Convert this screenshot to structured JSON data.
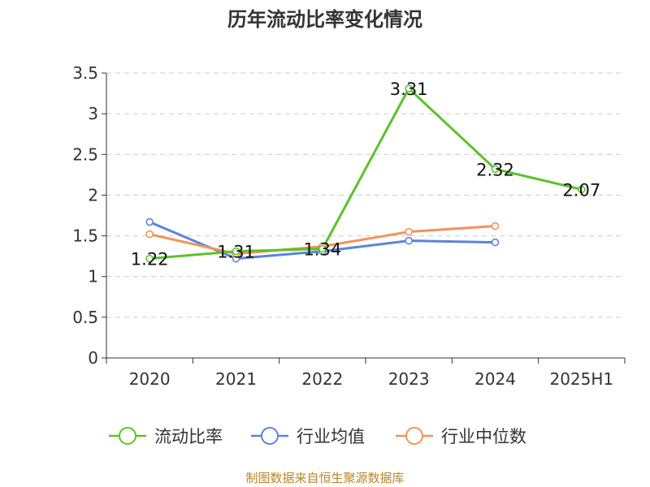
{
  "source_note": "制图数据来自恒生聚源数据库",
  "chart_data": {
    "type": "line",
    "title": "历年流动比率变化情况",
    "categories": [
      "2020",
      "2021",
      "2022",
      "2023",
      "2024",
      "2025H1"
    ],
    "ylim": [
      0,
      3.5
    ],
    "yticks": [
      0,
      0.5,
      1,
      1.5,
      2,
      2.5,
      3,
      3.5
    ],
    "ytick_labels": [
      "0",
      "0.5",
      "1",
      "1.5",
      "2",
      "2.5",
      "3",
      "3.5"
    ],
    "grid": true,
    "legend_position": "bottom",
    "series": [
      {
        "name": "流动比率",
        "color": "#5cc22b",
        "values": [
          1.22,
          1.31,
          1.34,
          3.31,
          2.32,
          2.07
        ],
        "labels": [
          "1.22",
          "1.31",
          "1.34",
          "3.31",
          "2.32",
          "2.07"
        ]
      },
      {
        "name": "行业均值",
        "color": "#5b84db",
        "values": [
          1.67,
          1.22,
          1.31,
          1.44,
          1.42,
          null
        ]
      },
      {
        "name": "行业中位数",
        "color": "#f5915a",
        "values": [
          1.52,
          1.28,
          1.37,
          1.55,
          1.62,
          null
        ]
      }
    ]
  }
}
